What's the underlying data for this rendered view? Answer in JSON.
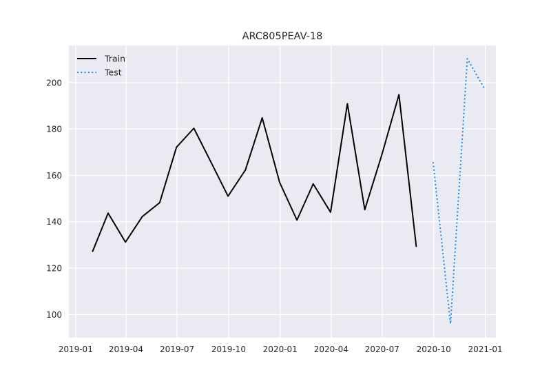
{
  "chart_data": {
    "type": "line",
    "title": "ARC805PEAV-18",
    "xlabel": "",
    "ylabel": "",
    "x_type": "date",
    "xlim": [
      "2018-12-20",
      "2021-01-20"
    ],
    "ylim": [
      90,
      216
    ],
    "xticks": [
      {
        "date": "2019-01-01",
        "label": "2019-01"
      },
      {
        "date": "2019-04-01",
        "label": "2019-04"
      },
      {
        "date": "2019-07-01",
        "label": "2019-07"
      },
      {
        "date": "2019-10-01",
        "label": "2019-10"
      },
      {
        "date": "2020-01-01",
        "label": "2020-01"
      },
      {
        "date": "2020-04-01",
        "label": "2020-04"
      },
      {
        "date": "2020-07-01",
        "label": "2020-07"
      },
      {
        "date": "2020-10-01",
        "label": "2020-10"
      },
      {
        "date": "2021-01-01",
        "label": "2021-01"
      }
    ],
    "yticks": [
      100,
      120,
      140,
      160,
      180,
      200
    ],
    "grid": true,
    "legend_position": "top-left",
    "series": [
      {
        "name": "Train",
        "color": "#000000",
        "style": "solid",
        "x": [
          "2019-01-31",
          "2019-02-28",
          "2019-03-31",
          "2019-04-30",
          "2019-05-31",
          "2019-06-30",
          "2019-07-31",
          "2019-08-31",
          "2019-09-30",
          "2019-10-31",
          "2019-11-30",
          "2019-12-31",
          "2020-01-31",
          "2020-02-29",
          "2020-03-31",
          "2020-04-30",
          "2020-05-31",
          "2020-06-30",
          "2020-07-31",
          "2020-08-31"
        ],
        "y": [
          127,
          143.7,
          131.2,
          142.2,
          148.2,
          172.1,
          180.3,
          165.5,
          151,
          162.3,
          184.8,
          157,
          140.7,
          156.3,
          144.1,
          190.9,
          145.2,
          168.5,
          194.8,
          129.1
        ]
      },
      {
        "name": "Test",
        "color": "#1e88e5",
        "style": "dotted",
        "x": [
          "2020-09-30",
          "2020-10-31",
          "2020-11-30",
          "2020-12-31"
        ],
        "y": [
          165.7,
          96,
          210.3,
          197.2
        ]
      }
    ]
  }
}
